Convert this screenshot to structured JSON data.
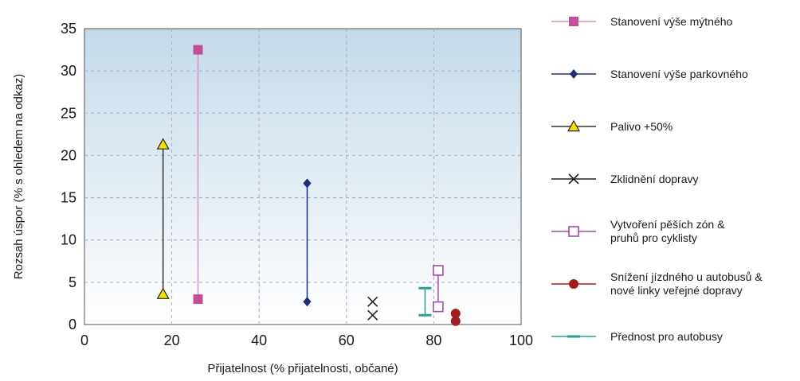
{
  "chart_data": {
    "type": "scatter",
    "xlabel": "Přijatelnost (% přijatelnosti, občané)",
    "ylabel": "Rozsah úspor (% s ohledem na odkaz)",
    "xlim": [
      0,
      100
    ],
    "ylim": [
      0,
      35
    ],
    "x_ticks": [
      "0",
      "20",
      "40",
      "60",
      "80",
      "100"
    ],
    "y_ticks": [
      "0",
      "5",
      "10",
      "15",
      "20",
      "25",
      "30",
      "35"
    ],
    "grid": true,
    "legend_position": "right",
    "series": [
      {
        "name": "Stanovení výše mýtného",
        "marker": "square",
        "color": "#c04f9a",
        "line_color": "#d98fc6",
        "points": [
          [
            26,
            32.5
          ],
          [
            26,
            3
          ]
        ]
      },
      {
        "name": "Stanovení výše parkovného",
        "marker": "diamond",
        "color": "#1f2d7a",
        "line_color": "#1f2d7a",
        "points": [
          [
            51,
            16.7
          ],
          [
            51,
            2.7
          ]
        ]
      },
      {
        "name": "Palivo +50%",
        "marker": "triangle",
        "color": "#f2e200",
        "line_color": "#333333",
        "points": [
          [
            18,
            21.3
          ],
          [
            18,
            3.6
          ]
        ]
      },
      {
        "name": "Zklidnění dopravy",
        "marker": "x",
        "color": "#222222",
        "line_color": "#222222",
        "points": [
          [
            66,
            2.7
          ],
          [
            66,
            1.1
          ]
        ]
      },
      {
        "name": "Vytvoření pěších zón & pruhů pro cyklisty",
        "marker": "open-square",
        "color": "#a44aa8",
        "line_color": "#a44aa8",
        "points": [
          [
            81,
            6.4
          ],
          [
            81,
            2.1
          ]
        ]
      },
      {
        "name": "Snížení jízdného u autobusů & nové linky veřejné dopravy",
        "marker": "circle",
        "color": "#a01e1e",
        "line_color": "#a01e1e",
        "points": [
          [
            85,
            1.3
          ],
          [
            85,
            0.4
          ]
        ]
      },
      {
        "name": "Přednost pro autobusy",
        "marker": "dash",
        "color": "#2a9d8f",
        "line_color": "#2a9d8f",
        "points": [
          [
            78,
            4.3
          ],
          [
            78,
            1.1
          ]
        ]
      }
    ]
  }
}
